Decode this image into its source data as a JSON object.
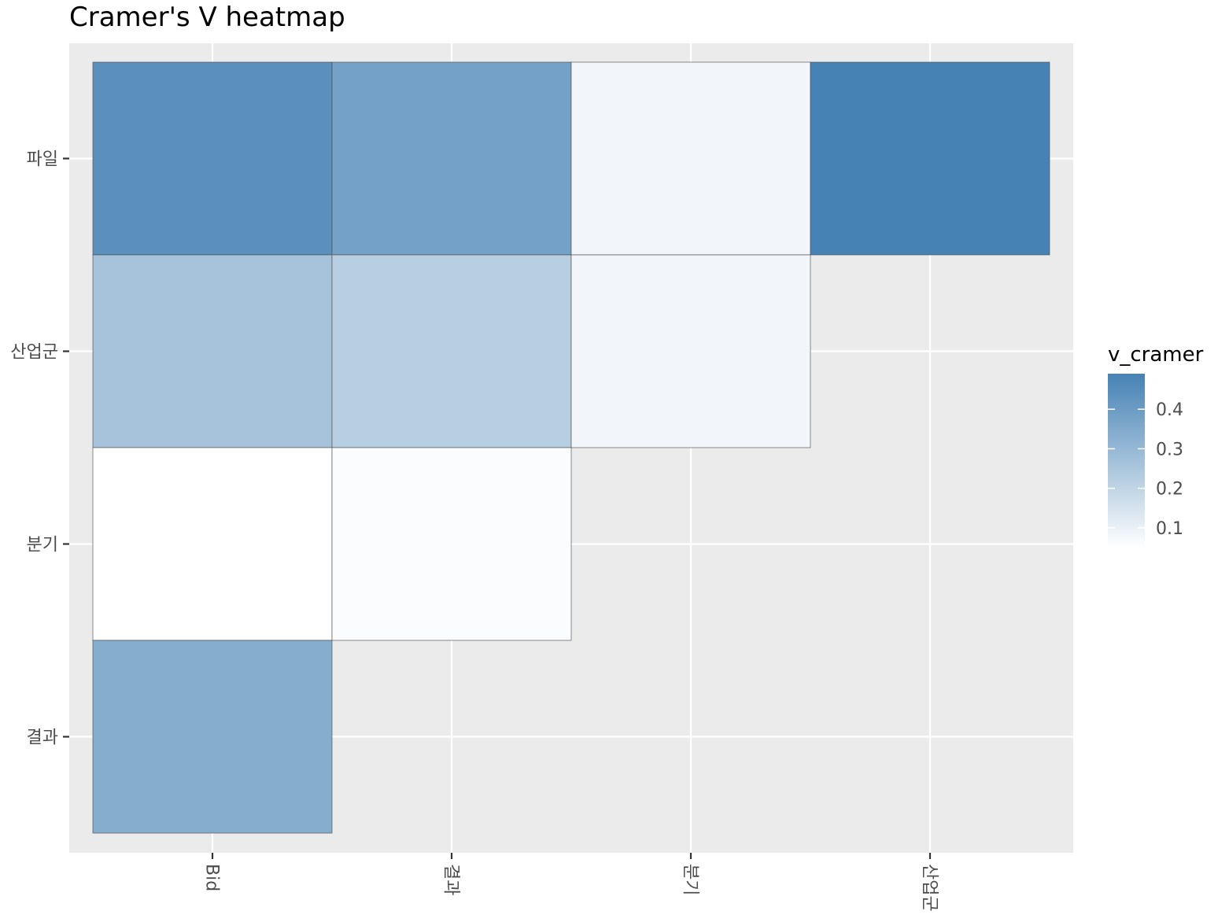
{
  "chart_data": {
    "type": "heatmap",
    "title": "Cramer's V heatmap",
    "xlabel": "",
    "ylabel": "",
    "x_categories": [
      "Bid",
      "결과",
      "분기",
      "산업군"
    ],
    "y_categories": [
      "결과",
      "분기",
      "산업군",
      "파일"
    ],
    "cells": [
      {
        "x": "Bid",
        "y": "파일",
        "value": 0.44
      },
      {
        "x": "결과",
        "y": "파일",
        "value": 0.38
      },
      {
        "x": "분기",
        "y": "파일",
        "value": 0.08
      },
      {
        "x": "산업군",
        "y": "파일",
        "value": 0.49
      },
      {
        "x": "Bid",
        "y": "산업군",
        "value": 0.26
      },
      {
        "x": "결과",
        "y": "산업군",
        "value": 0.22
      },
      {
        "x": "분기",
        "y": "산업군",
        "value": 0.08
      },
      {
        "x": "Bid",
        "y": "분기",
        "value": 0.05
      },
      {
        "x": "결과",
        "y": "분기",
        "value": 0.06
      },
      {
        "x": "Bid",
        "y": "결과",
        "value": 0.34
      }
    ],
    "legend": {
      "title": "v_cramer",
      "ticks": [
        "0.1",
        "0.2",
        "0.3",
        "0.4"
      ],
      "tick_values": [
        0.1,
        0.2,
        0.3,
        0.4
      ],
      "range": [
        0.05,
        0.49
      ],
      "low_color": "#ffffff",
      "high_color": "#4682b4",
      "position": "right"
    },
    "background_color": "#ebebeb",
    "grid": true
  }
}
